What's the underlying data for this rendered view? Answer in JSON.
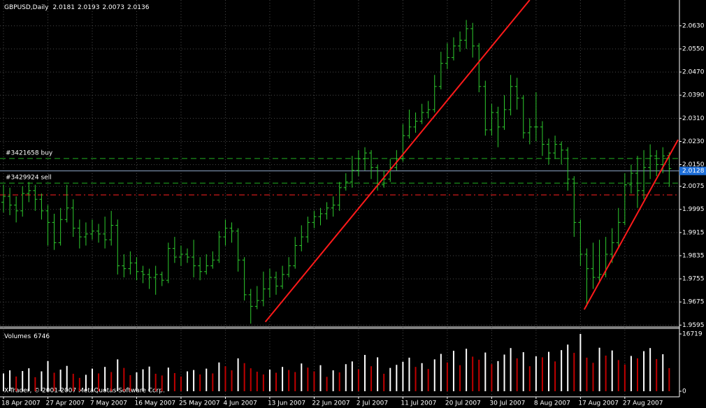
{
  "chart_data": {
    "type": "ohlc",
    "title": "GBPUSD,Daily",
    "categories": [
      "18 Apr 2007",
      null,
      null,
      null,
      null,
      null,
      null,
      "27 Apr 2007",
      null,
      null,
      null,
      null,
      null,
      null,
      "7 May 2007",
      null,
      null,
      null,
      null,
      null,
      null,
      "16 May 2007",
      null,
      null,
      null,
      null,
      null,
      null,
      "25 May 2007",
      null,
      null,
      null,
      null,
      null,
      null,
      "4 Jun 2007",
      null,
      null,
      null,
      null,
      null,
      null,
      "13 Jun 2007",
      null,
      null,
      null,
      null,
      null,
      null,
      "22 Jun 2007",
      null,
      null,
      null,
      null,
      null,
      null,
      "2 Jul 2007",
      null,
      null,
      null,
      null,
      null,
      null,
      "11 Jul 2007",
      null,
      null,
      null,
      null,
      null,
      null,
      "20 Jul 2007",
      null,
      null,
      null,
      null,
      null,
      null,
      "30 Jul 2007",
      null,
      null,
      null,
      null,
      null,
      null,
      "8 Aug 2007",
      null,
      null,
      null,
      null,
      null,
      null,
      "17 Aug 2007",
      null,
      null,
      null,
      null,
      null,
      null,
      "27 Aug 2007",
      null,
      null,
      null,
      null,
      null,
      null,
      null
    ],
    "open": [
      2.002,
      2.004,
      2.001,
      1.999,
      2.005,
      2.006,
      2.003,
      1.999,
      1.995,
      1.988,
      1.996,
      2.0,
      1.993,
      1.99,
      1.991,
      1.992,
      1.991,
      1.989,
      1.994,
      1.98,
      1.979,
      1.981,
      1.978,
      1.977,
      1.976,
      1.977,
      1.975,
      1.986,
      1.983,
      1.984,
      1.983,
      1.98,
      1.978,
      1.98,
      1.982,
      1.99,
      1.993,
      1.992,
      1.982,
      1.97,
      1.966,
      1.968,
      1.972,
      1.976,
      1.973,
      1.977,
      1.98,
      1.987,
      1.99,
      1.995,
      1.997,
      1.998,
      2.0,
      2.001,
      2.007,
      2.009,
      2.013,
      2.017,
      2.019,
      2.014,
      2.008,
      2.01,
      2.014,
      2.017,
      2.025,
      2.028,
      2.03,
      2.033,
      2.034,
      2.042,
      2.05,
      2.052,
      2.056,
      2.058,
      2.062,
      2.056,
      2.042,
      2.027,
      2.033,
      2.028,
      2.034,
      2.042,
      2.038,
      2.026,
      2.028,
      2.028,
      2.022,
      2.019,
      2.022,
      2.02,
      2.01,
      1.995,
      1.984,
      1.979,
      1.976,
      1.977,
      1.984,
      1.988,
      1.995,
      2.008,
      2.012,
      2.006,
      2.014,
      2.018,
      2.015,
      2.0181
    ],
    "high": [
      2.008,
      2.007,
      2.004,
      2.0075,
      2.009,
      2.008,
      2.005,
      2.001,
      1.998,
      2.0,
      2.008,
      2.003,
      1.996,
      1.995,
      1.996,
      1.9945,
      1.997,
      1.999,
      1.996,
      1.984,
      1.985,
      1.983,
      1.98,
      1.979,
      1.98,
      1.978,
      1.988,
      1.99,
      1.987,
      1.986,
      1.989,
      1.983,
      1.984,
      1.985,
      1.992,
      1.996,
      1.995,
      1.993,
      1.983,
      1.972,
      1.973,
      1.978,
      1.979,
      1.978,
      1.98,
      1.983,
      1.99,
      1.994,
      1.997,
      1.999,
      2.0,
      2.002,
      2.004,
      2.009,
      2.012,
      2.018,
      2.02,
      2.021,
      2.02,
      2.015,
      2.013,
      2.017,
      2.02,
      2.029,
      2.034,
      2.033,
      2.036,
      2.037,
      2.046,
      2.054,
      2.057,
      2.059,
      2.061,
      2.065,
      2.064,
      2.057,
      2.044,
      2.036,
      2.035,
      2.039,
      2.046,
      2.045,
      2.039,
      2.031,
      2.04,
      2.03,
      2.024,
      2.025,
      2.023,
      2.021,
      2.011,
      1.996,
      1.986,
      1.988,
      1.989,
      1.99,
      1.993,
      2.0,
      2.012,
      2.015,
      2.018,
      2.02,
      2.022,
      2.02,
      2.021,
      2.0193
    ],
    "low": [
      1.9985,
      1.9975,
      1.995,
      1.997,
      2.002,
      1.999,
      1.996,
      1.987,
      1.9855,
      1.987,
      1.995,
      1.99,
      1.986,
      1.987,
      1.989,
      1.988,
      1.986,
      1.987,
      1.977,
      1.976,
      1.977,
      1.975,
      1.974,
      1.972,
      1.97,
      1.973,
      1.974,
      1.981,
      1.98,
      1.981,
      1.976,
      1.975,
      1.977,
      1.979,
      1.981,
      1.987,
      1.988,
      1.978,
      1.968,
      1.96,
      1.965,
      1.966,
      1.969,
      1.97,
      1.972,
      1.976,
      1.979,
      1.985,
      1.988,
      1.993,
      1.994,
      1.996,
      1.997,
      1.999,
      2.006,
      2.007,
      2.011,
      2.013,
      2.01,
      2.006,
      2.007,
      2.009,
      2.013,
      2.016,
      2.024,
      2.026,
      2.029,
      2.031,
      2.033,
      2.041,
      2.048,
      2.051,
      2.054,
      2.055,
      2.052,
      2.04,
      2.025,
      2.025,
      2.021,
      2.027,
      2.032,
      2.034,
      2.024,
      2.022,
      2.023,
      2.018,
      2.015,
      2.017,
      2.015,
      2.006,
      1.99,
      1.98,
      1.966,
      1.972,
      1.974,
      1.976,
      1.981,
      1.986,
      1.994,
      2.005,
      2.0,
      2.003,
      2.01,
      2.011,
      2.012,
      2.0073
    ],
    "close": [
      2.004,
      2.001,
      1.999,
      2.005,
      2.006,
      2.003,
      1.999,
      1.995,
      1.988,
      1.996,
      2.0,
      1.993,
      1.99,
      1.991,
      1.992,
      1.991,
      1.989,
      1.994,
      1.98,
      1.979,
      1.981,
      1.978,
      1.977,
      1.976,
      1.977,
      1.975,
      1.986,
      1.983,
      1.984,
      1.983,
      1.98,
      1.978,
      1.98,
      1.982,
      1.99,
      1.993,
      1.992,
      1.982,
      1.97,
      1.966,
      1.968,
      1.972,
      1.976,
      1.973,
      1.977,
      1.98,
      1.987,
      1.99,
      1.995,
      1.997,
      1.998,
      2.0,
      2.001,
      2.007,
      2.009,
      2.013,
      2.017,
      2.019,
      2.014,
      2.008,
      2.01,
      2.014,
      2.017,
      2.025,
      2.028,
      2.03,
      2.033,
      2.034,
      2.042,
      2.05,
      2.052,
      2.056,
      2.058,
      2.062,
      2.056,
      2.042,
      2.027,
      2.033,
      2.028,
      2.034,
      2.042,
      2.038,
      2.026,
      2.028,
      2.028,
      2.022,
      2.019,
      2.022,
      2.02,
      2.01,
      1.995,
      1.984,
      1.979,
      1.976,
      1.977,
      1.984,
      1.988,
      1.995,
      2.008,
      2.012,
      2.006,
      2.014,
      2.018,
      2.015,
      2.018,
      2.0136
    ],
    "color": "#2ecc2e",
    "ylim": [
      1.9591,
      2.0719
    ],
    "yticks": [
      {
        "value": 2.063,
        "label": "2.0630"
      },
      {
        "value": 2.055,
        "label": "2.0550"
      },
      {
        "value": 2.047,
        "label": "2.0470"
      },
      {
        "value": 2.039,
        "label": "2.0390"
      },
      {
        "value": 2.031,
        "label": "2.0310"
      },
      {
        "value": 2.023,
        "label": "2.0230"
      },
      {
        "value": 2.015,
        "label": "2.0150"
      },
      2.0075,
      1.9995,
      1.9915,
      1.9835,
      1.9755,
      1.9675,
      1.9595
    ],
    "grid": true,
    "bid": 2.0128,
    "bid_color": "#1e6fd9",
    "levels": [
      {
        "label": "#3421658 buy",
        "value": 2.0171,
        "color": "#22b022"
      },
      {
        "label": "#3429924 sell",
        "value": 2.0086,
        "color": "#22b022"
      },
      {
        "value": 2.0045,
        "color": "#ff2020"
      }
    ],
    "trendlines": [
      {
        "x": [
          41.3,
          83.0
        ],
        "y": [
          1.9606,
          2.0719
        ],
        "color": "#ff1a1a"
      },
      {
        "x": [
          91.6,
          106.4
        ],
        "y": [
          1.9649,
          2.0236
        ],
        "color": "#ff1a1a"
      }
    ],
    "volume": {
      "name": "Volumes",
      "values": [
        5200,
        6100,
        4300,
        5900,
        6700,
        4100,
        5800,
        8800,
        5400,
        6300,
        7400,
        5100,
        3900,
        4800,
        6600,
        5200,
        7100,
        5600,
        9300,
        6800,
        4700,
        5500,
        6400,
        7200,
        5100,
        4600,
        6900,
        5300,
        4300,
        5800,
        6200,
        4900,
        6600,
        5200,
        8400,
        7300,
        6100,
        9600,
        8200,
        6700,
        5700,
        4900,
        6300,
        5400,
        7100,
        6200,
        5600,
        8100,
        6900,
        5800,
        7600,
        4200,
        6100,
        5500,
        7900,
        8700,
        6400,
        10600,
        7300,
        9900,
        5100,
        6800,
        7700,
        8600,
        9800,
        7100,
        8200,
        6500,
        9300,
        10900,
        8400,
        11800,
        7600,
        12400,
        10100,
        9200,
        11300,
        7900,
        8800,
        10700,
        12600,
        9600,
        11400,
        7300,
        10200,
        9900,
        11500,
        8700,
        12000,
        13600,
        11200,
        16719,
        9800,
        8300,
        12700,
        10400,
        11900,
        9100,
        7800,
        10300,
        9600,
        11700,
        12600,
        9400,
        10800,
        6746
      ],
      "ylim": [
        0,
        16719
      ],
      "yticks": [
        16719,
        0
      ],
      "up_color": "#ffffff",
      "down_color": "#c00000"
    },
    "copyright": "X-Trader, © 2001-2007 MetaQuotas Software Corp."
  }
}
